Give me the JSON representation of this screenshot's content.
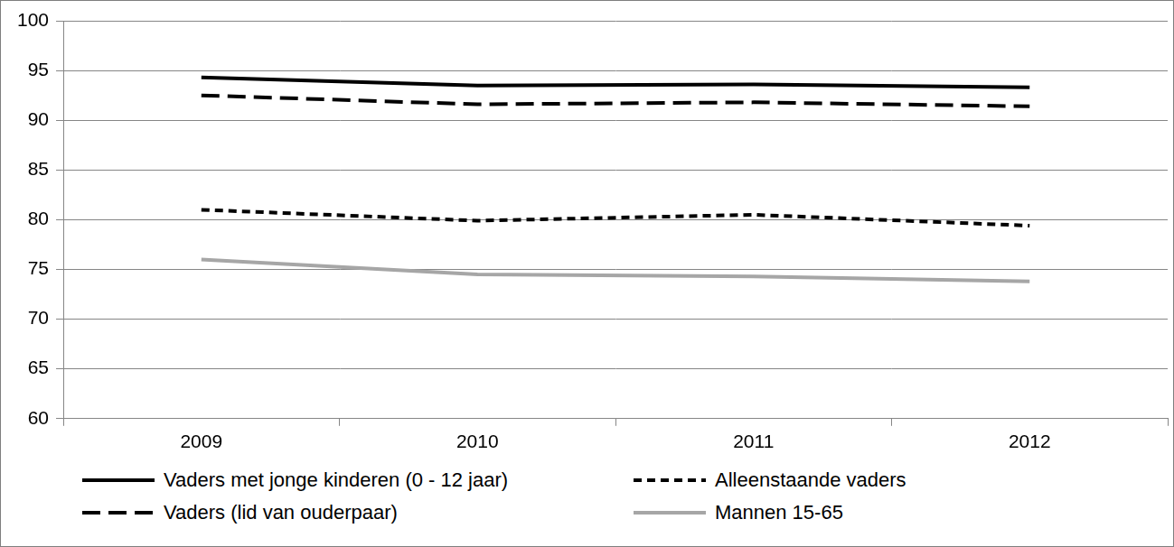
{
  "chart_data": {
    "type": "line",
    "categories": [
      "2009",
      "2010",
      "2011",
      "2012"
    ],
    "series": [
      {
        "name": "Vaders met jonge kinderen (0 - 12 jaar)",
        "color": "#000000",
        "line_style": "solid",
        "values": [
          94.3,
          93.5,
          93.6,
          93.3
        ]
      },
      {
        "name": "Alleenstaande vaders",
        "color": "#000000",
        "line_style": "short_dash",
        "values": [
          81.0,
          79.9,
          80.5,
          79.4
        ]
      },
      {
        "name": "Vaders (lid van ouderpaar)",
        "color": "#000000",
        "line_style": "long_dash",
        "values": [
          92.5,
          91.6,
          91.8,
          91.4
        ]
      },
      {
        "name": "Mannen 15-65",
        "color": "#a6a6a6",
        "line_style": "solid",
        "values": [
          76.0,
          74.5,
          74.3,
          73.8
        ]
      }
    ],
    "ylim": [
      60,
      100
    ],
    "yticks": [
      60,
      65,
      70,
      75,
      80,
      85,
      90,
      95,
      100
    ],
    "grid": true,
    "legend": "bottom"
  }
}
